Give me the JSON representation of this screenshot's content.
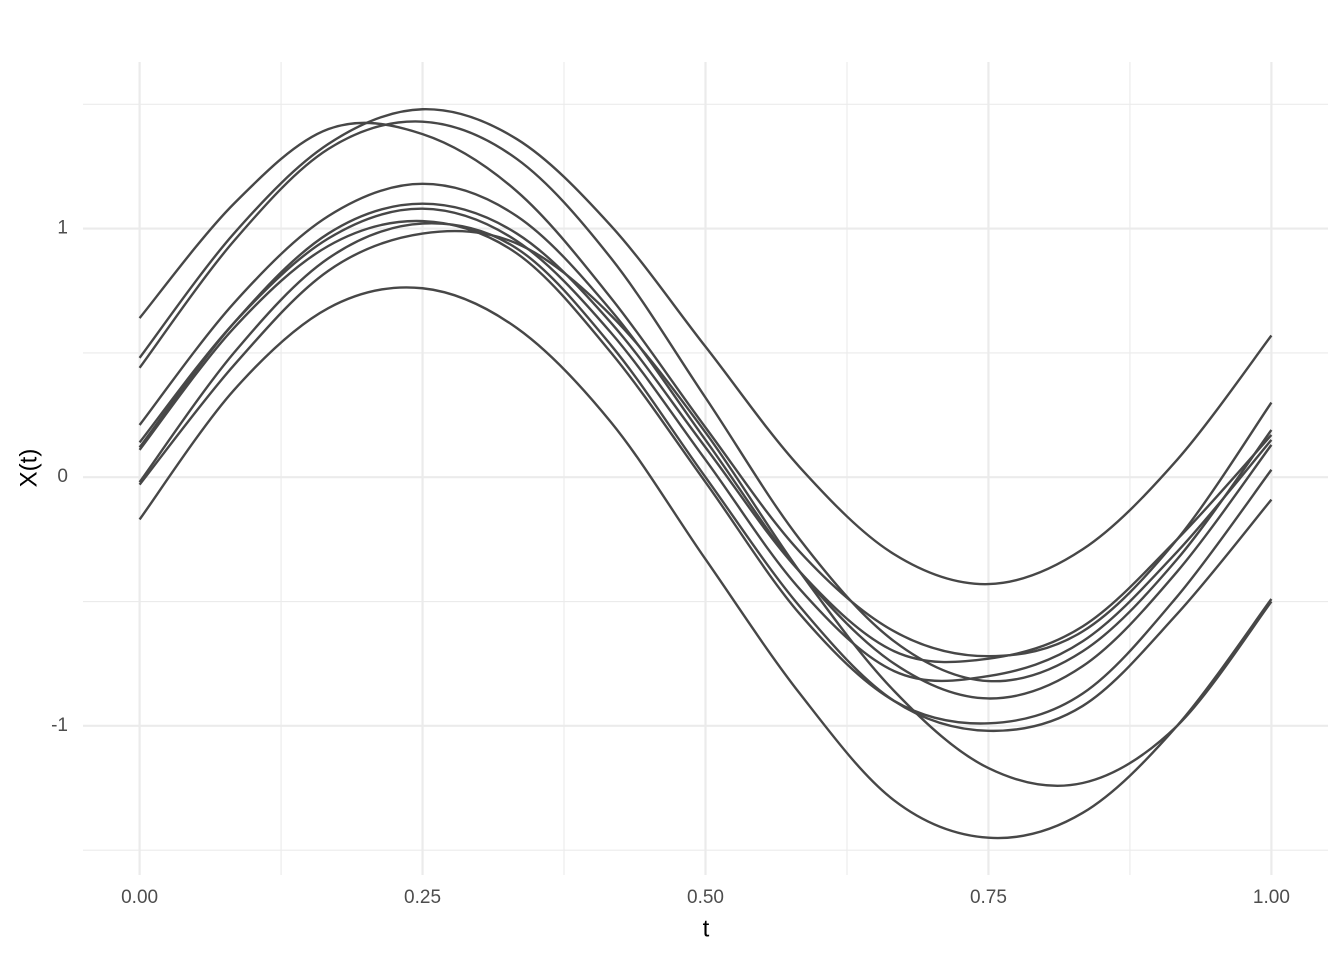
{
  "chart_data": {
    "type": "line",
    "x_label": "t",
    "y_label": "X(t)",
    "x": [
      0,
      0.0833,
      0.1667,
      0.25,
      0.3333,
      0.4167,
      0.5,
      0.5833,
      0.6667,
      0.75,
      0.8333,
      0.9167,
      1
    ],
    "series": [
      {
        "color": "#474747",
        "values": [
          0.48,
          0.98,
          1.34,
          1.48,
          1.36,
          1.01,
          0.525,
          0.04,
          -0.31,
          -0.43,
          -0.29,
          0.07,
          0.57
        ]
      },
      {
        "color": "#474747",
        "values": [
          0.64,
          1.1,
          1.4,
          1.38,
          1.15,
          0.72,
          0.2,
          -0.3,
          -0.62,
          -0.72,
          -0.62,
          -0.25,
          0.3
        ]
      },
      {
        "color": "#474747",
        "values": [
          0.44,
          0.95,
          1.32,
          1.43,
          1.28,
          0.88,
          0.32,
          -0.25,
          -0.66,
          -0.82,
          -0.7,
          -0.33,
          0.19
        ]
      },
      {
        "color": "#474747",
        "values": [
          -0.17,
          0.35,
          0.68,
          0.76,
          0.6,
          0.22,
          -0.33,
          -0.87,
          -1.3,
          -1.45,
          -1.35,
          -1.0,
          -0.49
        ]
      },
      {
        "color": "#474747",
        "values": [
          -0.03,
          0.45,
          0.83,
          0.98,
          0.94,
          0.65,
          0.18,
          -0.38,
          -0.86,
          -1.17,
          -1.23,
          -1.0,
          -0.5
        ]
      },
      {
        "color": "#474747",
        "values": [
          0.21,
          0.7,
          1.05,
          1.18,
          1.05,
          0.67,
          0.15,
          -0.38,
          -0.75,
          -0.89,
          -0.76,
          -0.38,
          0.13
        ]
      },
      {
        "color": "#474747",
        "values": [
          0.12,
          0.62,
          0.98,
          1.1,
          0.98,
          0.62,
          0.12,
          -0.38,
          -0.7,
          -0.73,
          -0.6,
          -0.25,
          0.17
        ]
      },
      {
        "color": "#474747",
        "values": [
          0.11,
          0.6,
          0.93,
          1.03,
          0.9,
          0.5,
          -0.02,
          -0.55,
          -0.9,
          -0.99,
          -0.87,
          -0.48,
          0.03
        ]
      },
      {
        "color": "#474747",
        "values": [
          0.14,
          0.62,
          0.96,
          1.08,
          0.95,
          0.58,
          0.07,
          -0.45,
          -0.78,
          -0.8,
          -0.66,
          -0.3,
          0.15
        ]
      },
      {
        "color": "#474747",
        "values": [
          -0.02,
          0.5,
          0.88,
          1.02,
          0.92,
          0.53,
          0.0,
          -0.52,
          -0.9,
          -1.02,
          -0.92,
          -0.55,
          -0.09
        ]
      }
    ],
    "xlim": [
      -0.05,
      1.05
    ],
    "ylim": [
      -1.6,
      1.67
    ],
    "xticks": [
      {
        "value": 0,
        "label": "0.00"
      },
      {
        "value": 0.25,
        "label": "0.25"
      },
      {
        "value": 0.5,
        "label": "0.50"
      },
      {
        "value": 0.75,
        "label": "0.75"
      },
      {
        "value": 1,
        "label": "1.00"
      }
    ],
    "yticks": [
      -1,
      0,
      1
    ],
    "x_minor_ticks": [
      0.125,
      0.375,
      0.625,
      0.875
    ],
    "y_minor_ticks": [
      -1.5,
      -0.5,
      0.5,
      1.5
    ],
    "grid": true
  }
}
